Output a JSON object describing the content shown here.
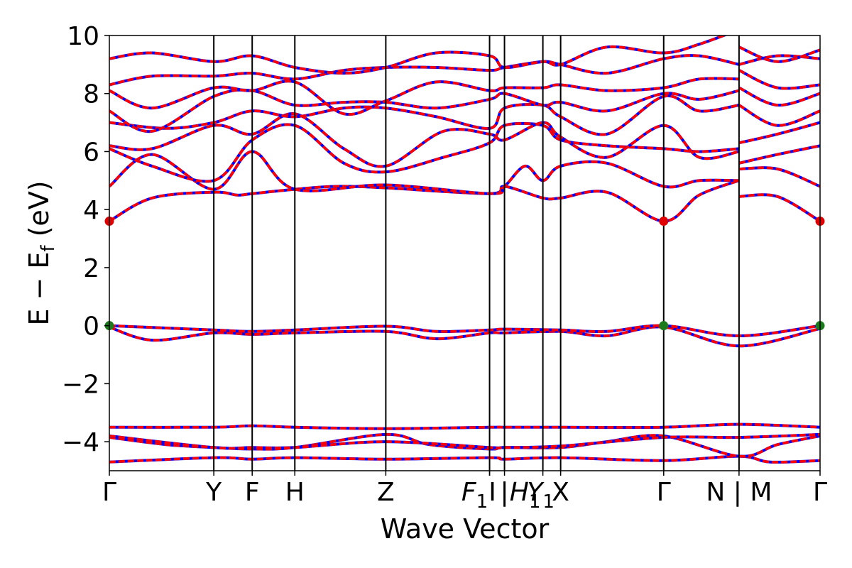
{
  "chart_data": {
    "type": "line",
    "xlabel": "Wave Vector",
    "ylabel": "E − E_f (eV)",
    "ylabel_main": "E − E",
    "ylabel_sub": "f",
    "ylabel_unit": " (eV)",
    "ylim": [
      -5,
      10
    ],
    "xlim": [
      0,
      1
    ],
    "yticks": [
      -4,
      -2,
      0,
      2,
      4,
      6,
      8,
      10
    ],
    "grid": false,
    "kpath": [
      {
        "label": "Γ",
        "x": 0.0
      },
      {
        "label": "Y",
        "x": 0.147
      },
      {
        "label": "F",
        "x": 0.201
      },
      {
        "label": "H",
        "x": 0.261
      },
      {
        "label": "Z",
        "x": 0.389
      },
      {
        "label": "F1",
        "x": 0.535
      },
      {
        "label": "I",
        "x": 0.535
      },
      {
        "label": "I1 | H1",
        "x": 0.556
      },
      {
        "label": "Y1",
        "x": 0.61
      },
      {
        "label": "X",
        "x": 0.635
      },
      {
        "label": "Γ",
        "x": 0.78
      },
      {
        "label": "N | M",
        "x": 0.886
      },
      {
        "label": "Γ",
        "x": 1.0
      }
    ],
    "tick_texts": [
      {
        "text": "Γ",
        "x": 0.0
      },
      {
        "text": "Y",
        "x": 0.147
      },
      {
        "text": "F",
        "x": 0.201
      },
      {
        "text": "H",
        "x": 0.261
      },
      {
        "text": "Z",
        "x": 0.389
      },
      {
        "text": "F",
        "sub": "1",
        "x": 0.514,
        "italic": true
      },
      {
        "text": "I",
        "x": 0.539
      },
      {
        "text": "|",
        "x": 0.556
      },
      {
        "text": "H",
        "sub": "1",
        "x": 0.585,
        "italic": true
      },
      {
        "text": "Y",
        "sub": "1",
        "x": 0.607,
        "italic": true
      },
      {
        "text": "X",
        "x": 0.635
      },
      {
        "text": "Γ",
        "x": 0.78
      },
      {
        "text": "N | M",
        "x": 0.886
      },
      {
        "text": "Γ",
        "x": 1.0
      }
    ],
    "breaks": [
      0.535,
      0.886
    ],
    "markers": [
      {
        "x": 0.0,
        "y": 3.6,
        "color": "#e00000",
        "name": "cbm-marker"
      },
      {
        "x": 0.78,
        "y": 3.6,
        "color": "#e00000",
        "name": "cbm-marker"
      },
      {
        "x": 1.0,
        "y": 3.6,
        "color": "#e00000",
        "name": "cbm-marker"
      },
      {
        "x": 0.0,
        "y": 0.0,
        "color": "#1b7a1b",
        "name": "vbm-marker"
      },
      {
        "x": 0.78,
        "y": 0.0,
        "color": "#1b7a1b",
        "name": "vbm-marker"
      },
      {
        "x": 1.0,
        "y": 0.0,
        "color": "#1b7a1b",
        "name": "vbm-marker"
      }
    ],
    "series_style": {
      "under_color": "#0000ff",
      "over_color": "#ff0000"
    },
    "bands": [
      [
        [
          0,
          -4.7
        ],
        [
          0.147,
          -4.55
        ],
        [
          0.201,
          -4.6
        ],
        [
          0.261,
          -4.55
        ],
        [
          0.389,
          -4.6
        ],
        [
          0.535,
          -4.55
        ],
        [
          0.556,
          -4.6
        ],
        [
          0.635,
          -4.55
        ],
        [
          0.78,
          -4.65
        ],
        [
          0.886,
          -4.5
        ],
        [
          0.93,
          -4.7
        ],
        [
          1.0,
          -4.65
        ]
      ],
      [
        [
          0,
          -3.85
        ],
        [
          0.08,
          -4.1
        ],
        [
          0.147,
          -4.2
        ],
        [
          0.201,
          -4.25
        ],
        [
          0.261,
          -4.2
        ],
        [
          0.389,
          -3.75
        ],
        [
          0.45,
          -4.1
        ],
        [
          0.535,
          -4.25
        ],
        [
          0.556,
          -4.2
        ],
        [
          0.635,
          -4.2
        ],
        [
          0.7,
          -4.0
        ],
        [
          0.78,
          -3.8
        ],
        [
          0.886,
          -4.5
        ],
        [
          0.94,
          -4.1
        ],
        [
          1.0,
          -3.8
        ]
      ],
      [
        [
          0,
          -3.8
        ],
        [
          0.147,
          -4.2
        ],
        [
          0.201,
          -4.2
        ],
        [
          0.261,
          -4.2
        ],
        [
          0.389,
          -4.0
        ],
        [
          0.535,
          -4.2
        ],
        [
          0.556,
          -4.2
        ],
        [
          0.635,
          -4.15
        ],
        [
          0.78,
          -3.85
        ],
        [
          0.886,
          -3.85
        ],
        [
          1.0,
          -3.75
        ]
      ],
      [
        [
          0,
          -3.5
        ],
        [
          0.147,
          -3.5
        ],
        [
          0.201,
          -3.45
        ],
        [
          0.261,
          -3.5
        ],
        [
          0.389,
          -3.55
        ],
        [
          0.535,
          -3.5
        ],
        [
          0.556,
          -3.5
        ],
        [
          0.635,
          -3.5
        ],
        [
          0.78,
          -3.5
        ],
        [
          0.886,
          -3.4
        ],
        [
          1.0,
          -3.5
        ]
      ],
      [
        [
          0,
          -0.05
        ],
        [
          0.06,
          -0.5
        ],
        [
          0.147,
          -0.25
        ],
        [
          0.201,
          -0.3
        ],
        [
          0.261,
          -0.25
        ],
        [
          0.389,
          -0.2
        ],
        [
          0.46,
          -0.45
        ],
        [
          0.535,
          -0.25
        ],
        [
          0.556,
          -0.25
        ],
        [
          0.635,
          -0.2
        ],
        [
          0.7,
          -0.35
        ],
        [
          0.78,
          -0.05
        ],
        [
          0.886,
          -0.7
        ],
        [
          1.0,
          -0.1
        ]
      ],
      [
        [
          0,
          0.0
        ],
        [
          0.147,
          -0.15
        ],
        [
          0.201,
          -0.2
        ],
        [
          0.261,
          -0.15
        ],
        [
          0.389,
          -0.02
        ],
        [
          0.46,
          -0.2
        ],
        [
          0.535,
          -0.15
        ],
        [
          0.556,
          -0.12
        ],
        [
          0.635,
          -0.15
        ],
        [
          0.7,
          -0.2
        ],
        [
          0.78,
          0.0
        ],
        [
          0.886,
          -0.35
        ],
        [
          1.0,
          0.0
        ]
      ],
      [
        [
          0,
          3.6
        ],
        [
          0.06,
          4.4
        ],
        [
          0.147,
          4.6
        ],
        [
          0.18,
          4.5
        ],
        [
          0.201,
          4.55
        ],
        [
          0.261,
          4.7
        ],
        [
          0.32,
          4.8
        ],
        [
          0.389,
          4.75
        ],
        [
          0.535,
          4.55
        ],
        [
          0.556,
          4.8
        ],
        [
          0.61,
          4.4
        ],
        [
          0.635,
          4.4
        ],
        [
          0.7,
          4.6
        ],
        [
          0.78,
          3.6
        ],
        [
          0.83,
          4.5
        ],
        [
          0.886,
          5.0
        ],
        [
          0.886,
          4.45
        ],
        [
          0.94,
          4.45
        ],
        [
          1.0,
          3.6
        ]
      ],
      [
        [
          0,
          4.8
        ],
        [
          0.06,
          5.9
        ],
        [
          0.147,
          4.7
        ],
        [
          0.201,
          6.0
        ],
        [
          0.261,
          4.7
        ],
        [
          0.389,
          4.85
        ],
        [
          0.535,
          4.55
        ],
        [
          0.556,
          4.8
        ],
        [
          0.585,
          5.5
        ],
        [
          0.61,
          5.0
        ],
        [
          0.635,
          5.5
        ],
        [
          0.7,
          5.6
        ],
        [
          0.78,
          4.8
        ],
        [
          0.83,
          5.0
        ],
        [
          0.886,
          5.0
        ],
        [
          0.886,
          5.4
        ],
        [
          0.94,
          5.4
        ],
        [
          1.0,
          4.8
        ]
      ],
      [
        [
          0,
          6.1
        ],
        [
          0.06,
          5.5
        ],
        [
          0.147,
          5.0
        ],
        [
          0.201,
          6.4
        ],
        [
          0.261,
          6.9
        ],
        [
          0.33,
          5.6
        ],
        [
          0.389,
          5.3
        ],
        [
          0.47,
          5.8
        ],
        [
          0.535,
          6.3
        ],
        [
          0.556,
          6.9
        ],
        [
          0.61,
          6.9
        ],
        [
          0.635,
          6.4
        ],
        [
          0.7,
          6.2
        ],
        [
          0.78,
          6.1
        ],
        [
          0.83,
          6.0
        ],
        [
          0.886,
          6.1
        ],
        [
          0.886,
          5.6
        ],
        [
          0.94,
          5.9
        ],
        [
          1.0,
          6.2
        ]
      ],
      [
        [
          0,
          6.2
        ],
        [
          0.06,
          6.1
        ],
        [
          0.147,
          6.9
        ],
        [
          0.201,
          6.6
        ],
        [
          0.261,
          7.3
        ],
        [
          0.33,
          6.1
        ],
        [
          0.389,
          5.5
        ],
        [
          0.47,
          6.7
        ],
        [
          0.535,
          6.6
        ],
        [
          0.556,
          6.4
        ],
        [
          0.61,
          7.0
        ],
        [
          0.635,
          6.5
        ],
        [
          0.7,
          5.8
        ],
        [
          0.78,
          6.9
        ],
        [
          0.83,
          5.8
        ],
        [
          0.886,
          6.0
        ],
        [
          0.886,
          6.3
        ],
        [
          0.94,
          6.6
        ],
        [
          1.0,
          7.0
        ]
      ],
      [
        [
          0,
          7.0
        ],
        [
          0.08,
          6.8
        ],
        [
          0.147,
          7.0
        ],
        [
          0.201,
          7.4
        ],
        [
          0.261,
          7.2
        ],
        [
          0.33,
          7.5
        ],
        [
          0.389,
          7.5
        ],
        [
          0.46,
          7.2
        ],
        [
          0.535,
          6.8
        ],
        [
          0.556,
          7.5
        ],
        [
          0.61,
          7.6
        ],
        [
          0.635,
          7.2
        ],
        [
          0.7,
          6.6
        ],
        [
          0.78,
          7.9
        ],
        [
          0.83,
          7.4
        ],
        [
          0.886,
          7.6
        ],
        [
          0.886,
          7.6
        ],
        [
          0.94,
          6.9
        ],
        [
          1.0,
          7.4
        ]
      ],
      [
        [
          0,
          7.4
        ],
        [
          0.06,
          6.7
        ],
        [
          0.147,
          7.9
        ],
        [
          0.201,
          8.1
        ],
        [
          0.261,
          7.6
        ],
        [
          0.33,
          7.7
        ],
        [
          0.389,
          7.7
        ],
        [
          0.46,
          7.5
        ],
        [
          0.535,
          7.8
        ],
        [
          0.556,
          8.0
        ],
        [
          0.61,
          7.6
        ],
        [
          0.635,
          7.7
        ],
        [
          0.7,
          7.4
        ],
        [
          0.78,
          8.0
        ],
        [
          0.83,
          7.8
        ],
        [
          0.886,
          8.1
        ],
        [
          0.886,
          8.2
        ],
        [
          0.94,
          7.6
        ],
        [
          1.0,
          8.0
        ]
      ],
      [
        [
          0,
          8.1
        ],
        [
          0.06,
          7.5
        ],
        [
          0.147,
          8.2
        ],
        [
          0.201,
          8.1
        ],
        [
          0.261,
          8.4
        ],
        [
          0.33,
          7.3
        ],
        [
          0.389,
          7.75
        ],
        [
          0.46,
          8.4
        ],
        [
          0.535,
          8.1
        ],
        [
          0.556,
          8.2
        ],
        [
          0.61,
          8.2
        ],
        [
          0.635,
          8.3
        ],
        [
          0.7,
          8.1
        ],
        [
          0.78,
          8.2
        ],
        [
          0.83,
          8.5
        ],
        [
          0.886,
          8.5
        ],
        [
          0.886,
          8.8
        ],
        [
          0.94,
          8.2
        ],
        [
          1.0,
          8.3
        ]
      ],
      [
        [
          0,
          8.3
        ],
        [
          0.06,
          8.6
        ],
        [
          0.147,
          8.6
        ],
        [
          0.201,
          8.7
        ],
        [
          0.261,
          8.5
        ],
        [
          0.33,
          8.8
        ],
        [
          0.389,
          8.9
        ],
        [
          0.46,
          8.9
        ],
        [
          0.535,
          8.8
        ],
        [
          0.556,
          8.9
        ],
        [
          0.61,
          9.1
        ],
        [
          0.635,
          9.0
        ],
        [
          0.7,
          8.7
        ],
        [
          0.78,
          9.2
        ],
        [
          0.83,
          9.3
        ],
        [
          0.886,
          9.0
        ],
        [
          0.886,
          9.0
        ],
        [
          0.94,
          9.3
        ],
        [
          1.0,
          9.2
        ]
      ],
      [
        [
          0,
          9.2
        ],
        [
          0.06,
          9.4
        ],
        [
          0.147,
          9.1
        ],
        [
          0.201,
          9.3
        ],
        [
          0.261,
          8.9
        ],
        [
          0.33,
          8.7
        ],
        [
          0.389,
          8.9
        ],
        [
          0.46,
          9.4
        ],
        [
          0.535,
          9.3
        ],
        [
          0.556,
          8.9
        ],
        [
          0.61,
          9.1
        ],
        [
          0.635,
          9.0
        ],
        [
          0.7,
          9.6
        ],
        [
          0.78,
          9.4
        ],
        [
          0.83,
          9.7
        ],
        [
          0.886,
          10.2
        ],
        [
          0.886,
          9.6
        ],
        [
          0.94,
          9.1
        ],
        [
          1.0,
          9.5
        ]
      ]
    ]
  }
}
